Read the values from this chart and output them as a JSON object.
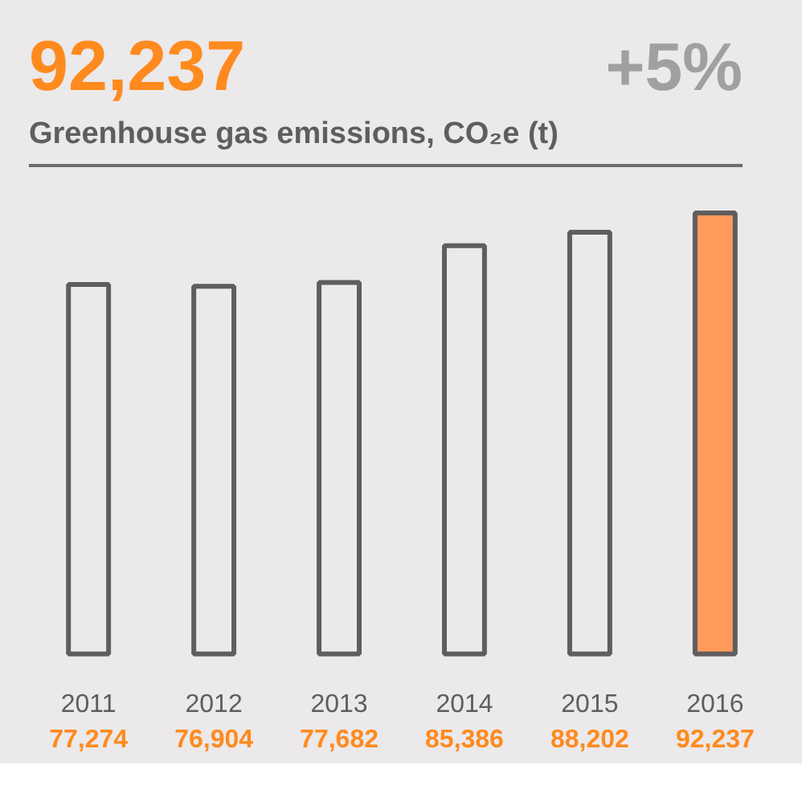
{
  "chart_data": {
    "type": "bar",
    "title": "92,237",
    "subtitle": "Greenhouse gas emissions, CO₂e (t)",
    "annotations": [
      "+5%"
    ],
    "categories": [
      "2011",
      "2012",
      "2013",
      "2014",
      "2015",
      "2016"
    ],
    "values": [
      77274,
      76904,
      77682,
      85386,
      88202,
      92237
    ],
    "colors": [
      "#ebe9ea",
      "#ebe9ea",
      "#ebe9ea",
      "#ebe9ea",
      "#ebe9ea",
      "#ff9a5a"
    ],
    "value_labels": [
      "77,274",
      "76,904",
      "77,682",
      "85,386",
      "88,202",
      "92,237"
    ]
  }
}
